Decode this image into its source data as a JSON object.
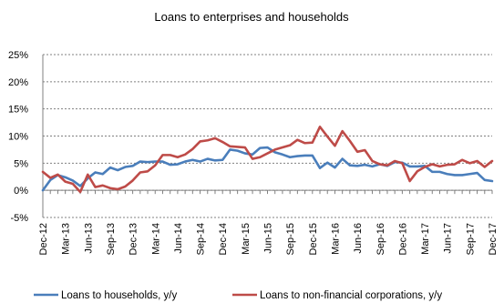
{
  "chart_data": {
    "type": "line",
    "title": "Loans to enterprises and households",
    "xlabel": "",
    "ylabel": "",
    "ylim": [
      -5,
      25
    ],
    "yticks": [
      -5,
      0,
      5,
      10,
      15,
      20,
      25
    ],
    "ytick_labels": [
      "-5%",
      "0%",
      "5%",
      "10%",
      "15%",
      "20%",
      "25%"
    ],
    "grid": true,
    "legend_position": "bottom",
    "x_tick_labels": [
      "Dec-12",
      "Mar-13",
      "Jun-13",
      "Sep-13",
      "Dec-13",
      "Mar-14",
      "Jun-14",
      "Sep-14",
      "Dec-14",
      "Mar-15",
      "Jun-15",
      "Sep-15",
      "Dec-15",
      "Mar-16",
      "Jun-16",
      "Sep-16",
      "Dec-16",
      "Mar-17",
      "Jun-17",
      "Sep-17",
      "Dec-17"
    ],
    "x_tick_months": [
      "2012-12",
      "2013-03",
      "2013-06",
      "2013-09",
      "2013-12",
      "2014-03",
      "2014-06",
      "2014-09",
      "2014-12",
      "2015-03",
      "2015-06",
      "2015-09",
      "2015-12",
      "2016-03",
      "2016-06",
      "2016-09",
      "2016-12",
      "2017-03",
      "2017-06",
      "2017-09",
      "2017-12"
    ],
    "x": [
      "2012-12",
      "2013-01",
      "2013-02",
      "2013-03",
      "2013-04",
      "2013-05",
      "2013-06",
      "2013-07",
      "2013-08",
      "2013-09",
      "2013-10",
      "2013-11",
      "2013-12",
      "2014-01",
      "2014-02",
      "2014-03",
      "2014-04",
      "2014-05",
      "2014-06",
      "2014-07",
      "2014-08",
      "2014-09",
      "2014-10",
      "2014-11",
      "2014-12",
      "2015-01",
      "2015-02",
      "2015-03",
      "2015-04",
      "2015-05",
      "2015-06",
      "2015-07",
      "2015-08",
      "2015-09",
      "2015-10",
      "2015-11",
      "2015-12",
      "2016-01",
      "2016-02",
      "2016-03",
      "2016-04",
      "2016-05",
      "2016-06",
      "2016-07",
      "2016-08",
      "2016-09",
      "2016-10",
      "2016-11",
      "2016-12",
      "2017-01",
      "2017-02",
      "2017-03",
      "2017-04",
      "2017-05",
      "2017-06",
      "2017-07",
      "2017-08",
      "2017-09",
      "2017-10",
      "2017-11",
      "2017-12"
    ],
    "series": [
      {
        "name": "Loans to households, y/y",
        "color": "#4a7ebb",
        "values": [
          0.0,
          1.9,
          2.8,
          2.4,
          1.8,
          0.8,
          2.2,
          3.3,
          3.0,
          4.2,
          3.7,
          4.3,
          4.5,
          5.3,
          5.2,
          5.3,
          5.3,
          4.7,
          4.8,
          5.3,
          5.6,
          5.3,
          5.8,
          5.5,
          5.6,
          7.5,
          7.3,
          6.8,
          6.6,
          7.8,
          7.9,
          7.0,
          6.6,
          6.1,
          6.3,
          6.4,
          6.4,
          4.1,
          5.1,
          4.2,
          5.8,
          4.6,
          4.5,
          4.7,
          4.4,
          4.8,
          4.5,
          5.2,
          5.1,
          4.4,
          4.4,
          4.5,
          3.4,
          3.4,
          3.0,
          2.8,
          2.8,
          3.0,
          3.2,
          1.9,
          1.7
        ]
      },
      {
        "name": "Loans to non-financial corporations, y/y",
        "color": "#be4b48",
        "values": [
          3.4,
          2.3,
          2.9,
          1.6,
          1.2,
          -0.3,
          2.9,
          0.6,
          0.9,
          0.4,
          0.2,
          0.7,
          1.8,
          3.3,
          3.5,
          4.6,
          6.5,
          6.5,
          6.1,
          6.6,
          7.6,
          9.0,
          9.2,
          9.6,
          8.9,
          8.1,
          8.0,
          7.9,
          5.8,
          6.1,
          6.8,
          7.5,
          7.9,
          8.3,
          9.3,
          8.7,
          8.8,
          11.7,
          9.9,
          8.2,
          10.9,
          9.1,
          7.1,
          7.4,
          5.4,
          4.8,
          4.6,
          5.4,
          5.0,
          1.7,
          3.5,
          4.3,
          4.8,
          4.4,
          4.7,
          4.8,
          5.6,
          5.0,
          5.4,
          4.3,
          5.4
        ]
      }
    ]
  }
}
